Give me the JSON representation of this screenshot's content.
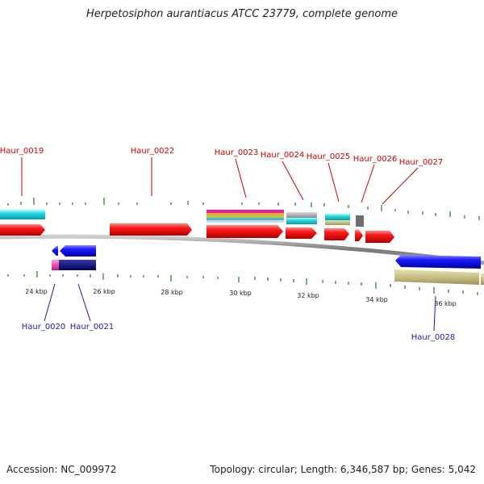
{
  "title": "Herpetosiphon aurantiacus ATCC 23779, complete genome",
  "footer": {
    "accession": "Accession: NC_009972",
    "summary": "Topology: circular; Length: 6,346,587 bp; Genes: 5,042"
  },
  "scale_labels": [
    "24 kbp",
    "26 kbp",
    "28 kbp",
    "30 kbp",
    "32 kbp",
    "34 kbp",
    "36 kbp"
  ],
  "genes_top": [
    "Haur_0019",
    "Haur_0022",
    "Haur_0023",
    "Haur_0024",
    "Haur_0025",
    "Haur_0026",
    "Haur_0027"
  ],
  "genes_bottom": [
    "Haur_0020",
    "Haur_0021",
    "Haur_0028"
  ],
  "colors": {
    "forward_cds": "#ee1111",
    "reverse_cds": "#1515ee",
    "top_label": "#cc0000",
    "bottom_label": "#1a1aaa",
    "tick": "#2a8a2a",
    "backbone": "#888888"
  }
}
